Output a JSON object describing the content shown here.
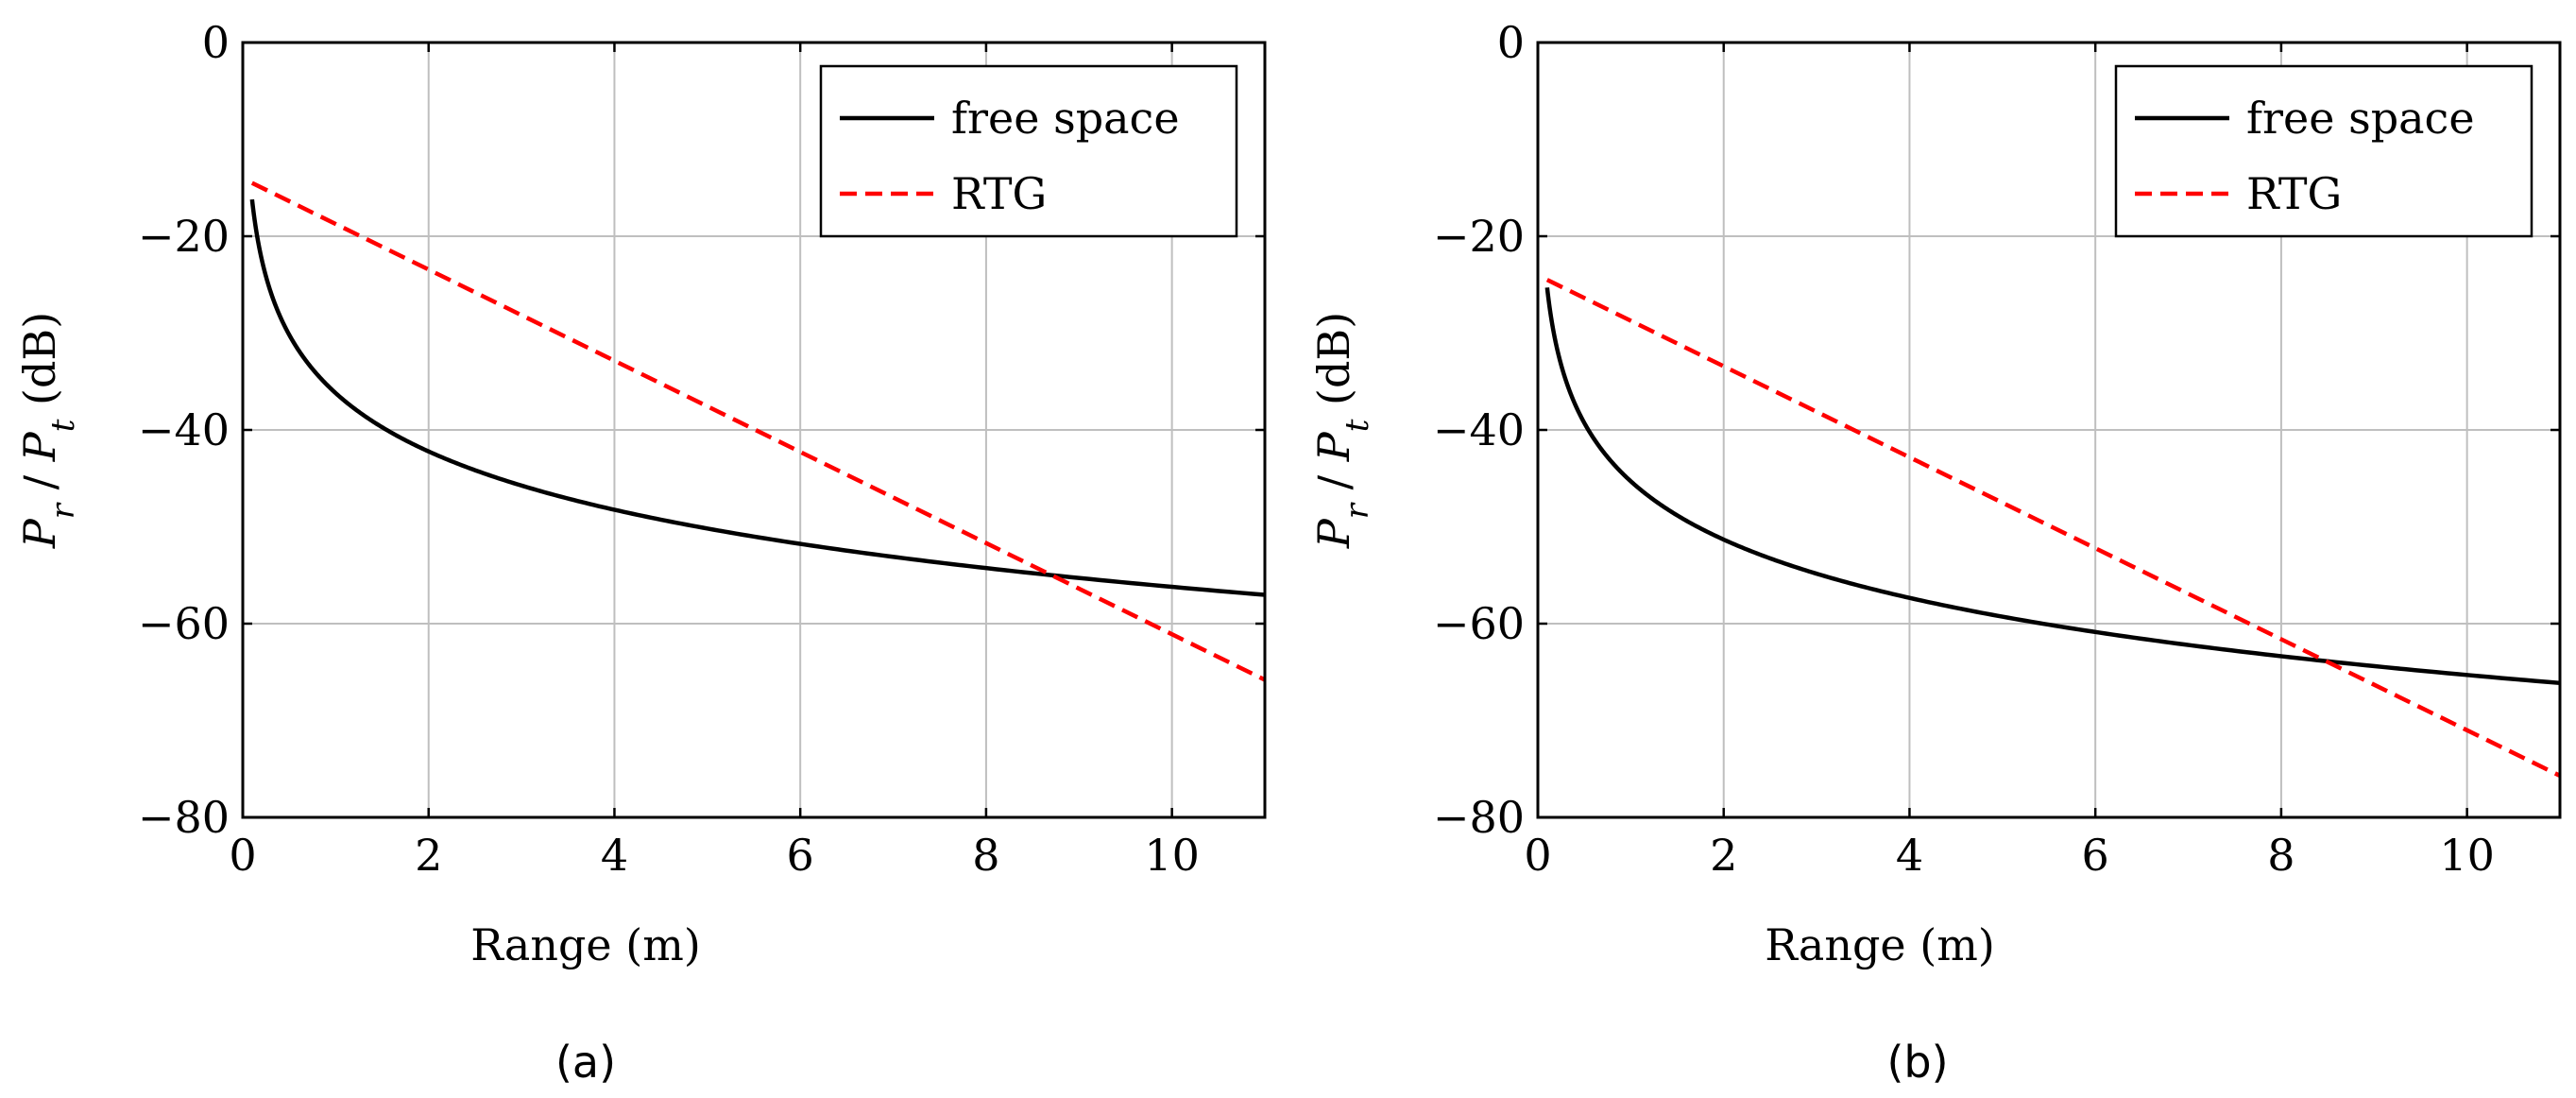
{
  "chart_data": [
    {
      "id": "a",
      "type": "line",
      "caption": "(a)",
      "xlabel": "Range (m)",
      "ylabel": {
        "P1": "P",
        "s1": "r",
        "sep": " / ",
        "P2": "P",
        "s2": "t",
        "unit": " (dB)"
      },
      "xlim": [
        0,
        11
      ],
      "ylim": [
        -80,
        0
      ],
      "xticks": [
        0,
        2,
        4,
        6,
        8,
        10
      ],
      "yticks": [
        0,
        -20,
        -40,
        -60,
        -80
      ],
      "xtick_labels": [
        "0",
        "2",
        "4",
        "6",
        "8",
        "10"
      ],
      "ytick_labels": [
        "0",
        "−20",
        "−40",
        "−60",
        "−80"
      ],
      "grid": true,
      "legend_position": "top-right",
      "series": [
        {
          "name": "free space",
          "color": "#000000",
          "dash": "solid",
          "model": "log",
          "x_start": 0.1,
          "x_end": 11,
          "y_at_1m": -36.2
        },
        {
          "name": "RTG",
          "color": "#ff0000",
          "dash": "dashed",
          "model": "linear",
          "x": [
            0.1,
            11
          ],
          "y": [
            -14.5,
            -65.8
          ]
        }
      ]
    },
    {
      "id": "b",
      "type": "line",
      "caption": "(b)",
      "xlabel": "Range (m)",
      "ylabel": {
        "P1": "P",
        "s1": "r",
        "sep": " / ",
        "P2": "P",
        "s2": "t",
        "unit": " (dB)"
      },
      "xlim": [
        0,
        11
      ],
      "ylim": [
        -80,
        0
      ],
      "xticks": [
        0,
        2,
        4,
        6,
        8,
        10
      ],
      "yticks": [
        0,
        -20,
        -40,
        -60,
        -80
      ],
      "xtick_labels": [
        "0",
        "2",
        "4",
        "6",
        "8",
        "10"
      ],
      "ytick_labels": [
        "0",
        "−20",
        "−40",
        "−60",
        "−80"
      ],
      "grid": true,
      "legend_position": "top-right",
      "series": [
        {
          "name": "free space",
          "color": "#000000",
          "dash": "solid",
          "model": "log",
          "x_start": 0.1,
          "x_end": 11,
          "y_at_1m": -45.3
        },
        {
          "name": "RTG",
          "color": "#ff0000",
          "dash": "dashed",
          "model": "linear",
          "x": [
            0.1,
            11
          ],
          "y": [
            -24.5,
            -75.7
          ]
        }
      ]
    }
  ]
}
